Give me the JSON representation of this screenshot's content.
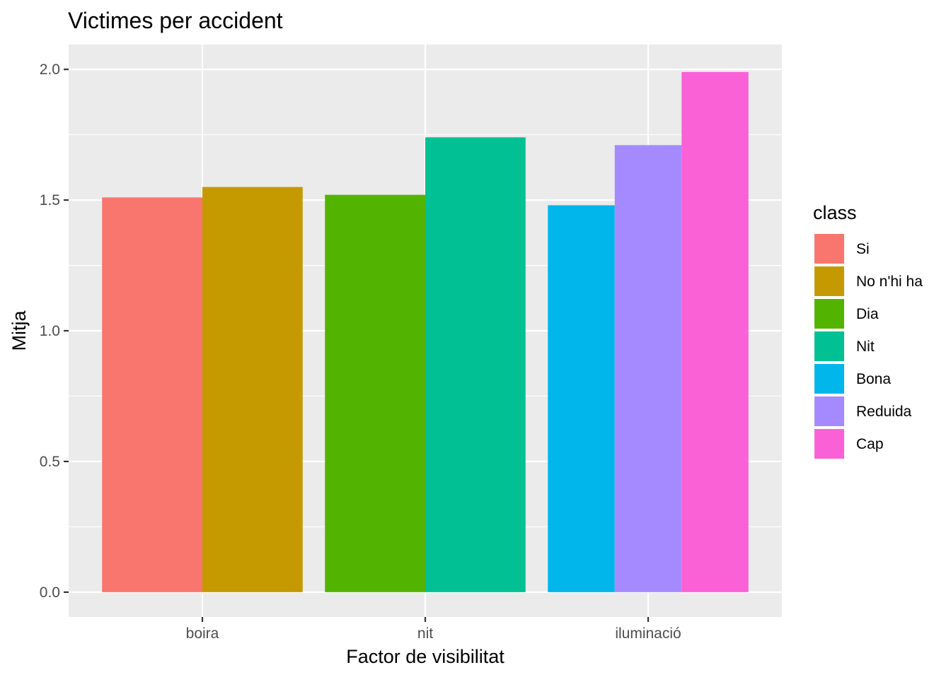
{
  "chart_data": {
    "type": "bar",
    "title": "Victimes per accident",
    "xlabel": "Factor de visibilitat",
    "ylabel": "Mitja",
    "ylim": [
      -0.095,
      2.095
    ],
    "yticks": [
      0.0,
      0.5,
      1.0,
      1.5,
      2.0
    ],
    "ytick_labels": [
      "0.0",
      "0.5",
      "1.0",
      "1.5",
      "2.0"
    ],
    "grid": true,
    "legend": {
      "title": "class",
      "placement": "right",
      "entries": [
        {
          "label": "Si",
          "color": "#F8766D"
        },
        {
          "label": "No n'hi ha",
          "color": "#C49A00"
        },
        {
          "label": "Dia",
          "color": "#53B400"
        },
        {
          "label": "Nit",
          "color": "#00C094"
        },
        {
          "label": "Bona",
          "color": "#00B6EB"
        },
        {
          "label": "Reduida",
          "color": "#A58AFF"
        },
        {
          "label": "Cap",
          "color": "#FB61D7"
        }
      ]
    },
    "categories": [
      "boira",
      "nit",
      "iluminació"
    ],
    "groups": [
      {
        "category": "boira",
        "bars": [
          {
            "class": "Si",
            "value": 1.51,
            "color": "#F8766D"
          },
          {
            "class": "No n'hi ha",
            "value": 1.55,
            "color": "#C49A00"
          }
        ]
      },
      {
        "category": "nit",
        "bars": [
          {
            "class": "Dia",
            "value": 1.52,
            "color": "#53B400"
          },
          {
            "class": "Nit",
            "value": 1.74,
            "color": "#00C094"
          }
        ]
      },
      {
        "category": "iluminació",
        "bars": [
          {
            "class": "Bona",
            "value": 1.48,
            "color": "#00B6EB"
          },
          {
            "class": "Reduida",
            "value": 1.71,
            "color": "#A58AFF"
          },
          {
            "class": "Cap",
            "value": 1.99,
            "color": "#FB61D7"
          }
        ]
      }
    ]
  }
}
